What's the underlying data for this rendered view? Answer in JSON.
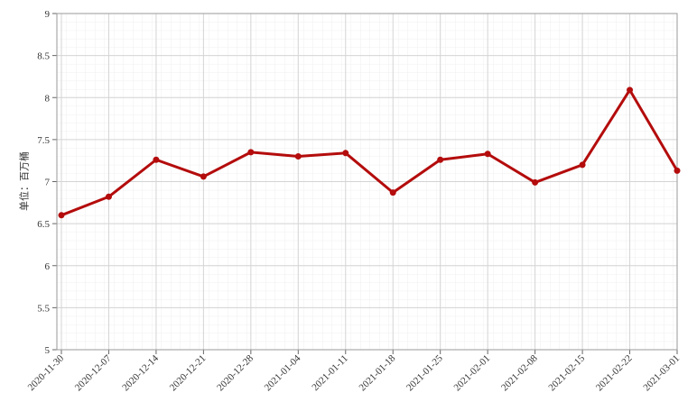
{
  "chart_data": {
    "type": "line",
    "y_label": "单位：百万桶",
    "x": [
      "2020-11-30",
      "2020-12-07",
      "2020-12-14",
      "2020-12-21",
      "2020-12-28",
      "2021-01-04",
      "2021-01-11",
      "2021-01-18",
      "2021-01-25",
      "2021-02-01",
      "2021-02-08",
      "2021-02-15",
      "2021-02-22",
      "2021-03-01"
    ],
    "values": [
      6.6,
      6.82,
      7.26,
      7.06,
      7.35,
      7.3,
      7.34,
      6.87,
      7.26,
      7.33,
      6.99,
      7.2,
      8.09,
      7.13
    ],
    "color": "#b40c0c",
    "ylim": [
      5,
      9
    ],
    "yticks": [
      5,
      5.5,
      6,
      6.5,
      7,
      7.5,
      8,
      8.5,
      9
    ],
    "grid": true
  }
}
